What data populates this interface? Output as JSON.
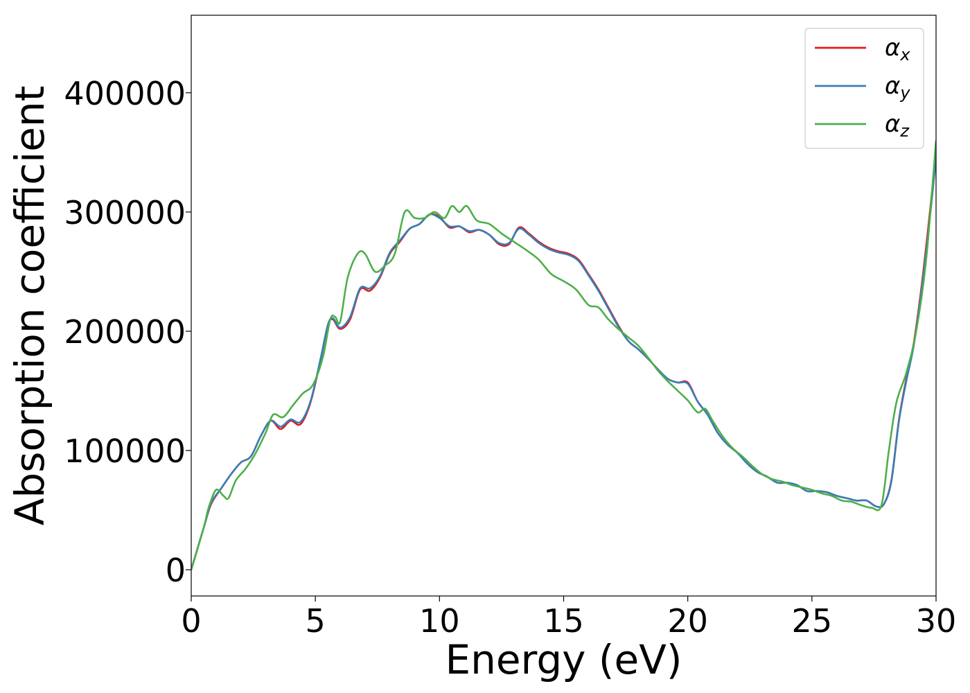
{
  "chart_data": {
    "type": "line",
    "title": "",
    "xlabel": "Energy (eV)",
    "ylabel": "Absorption coefficient",
    "xlim": [
      0,
      30
    ],
    "ylim": [
      -22000,
      465000
    ],
    "xticks": [
      0,
      5,
      10,
      15,
      20,
      25,
      30
    ],
    "xtick_labels": [
      "0",
      "5",
      "10",
      "15",
      "20",
      "25",
      "30"
    ],
    "yticks": [
      0,
      100000,
      200000,
      300000,
      400000
    ],
    "ytick_labels": [
      "0",
      "100000",
      "200000",
      "300000",
      "400000"
    ],
    "grid": false,
    "legend_position": "top-right",
    "series": [
      {
        "name": "α_x",
        "legend_base": "α",
        "legend_sub": "x",
        "color": "#e41a1c",
        "x": [
          0,
          0.5,
          0.8,
          1.2,
          1.6,
          2.0,
          2.4,
          2.8,
          3.2,
          3.6,
          4.0,
          4.4,
          4.8,
          5.2,
          5.5,
          5.7,
          6.0,
          6.4,
          6.8,
          7.2,
          7.6,
          8.0,
          8.4,
          8.8,
          9.2,
          9.6,
          10.0,
          10.4,
          10.8,
          11.2,
          11.6,
          12.0,
          12.4,
          12.8,
          13.2,
          13.6,
          14.0,
          14.4,
          14.8,
          15.2,
          15.6,
          16.0,
          16.4,
          16.8,
          17.2,
          17.6,
          18.0,
          18.4,
          18.8,
          19.2,
          19.6,
          20.0,
          20.4,
          20.8,
          21.2,
          21.6,
          22.0,
          22.4,
          22.8,
          23.2,
          23.6,
          24.0,
          24.4,
          24.8,
          25.2,
          25.6,
          26.0,
          26.4,
          26.8,
          27.2,
          27.6,
          27.9,
          28.2,
          28.5,
          28.8,
          29.1,
          29.4,
          29.7,
          30.0
        ],
        "values": [
          0,
          35000,
          55000,
          68000,
          80000,
          90000,
          95000,
          112000,
          125000,
          118000,
          125000,
          122000,
          140000,
          175000,
          205000,
          210000,
          202000,
          210000,
          235000,
          234000,
          245000,
          265000,
          275000,
          286000,
          290000,
          298000,
          296000,
          287000,
          288000,
          283000,
          285000,
          281000,
          273000,
          273000,
          287000,
          282000,
          275000,
          270000,
          267000,
          265000,
          260000,
          248000,
          235000,
          220000,
          205000,
          192000,
          185000,
          177000,
          168000,
          160000,
          157000,
          157000,
          141000,
          130000,
          115000,
          105000,
          98000,
          89000,
          82000,
          78000,
          73000,
          73000,
          71000,
          66000,
          66000,
          65000,
          62000,
          60000,
          58000,
          58000,
          53000,
          55000,
          75000,
          125000,
          160000,
          190000,
          235000,
          290000,
          350000
        ]
      },
      {
        "name": "α_y",
        "legend_base": "α",
        "legend_sub": "y",
        "color": "#377eb8",
        "x": [
          0,
          0.5,
          0.8,
          1.2,
          1.6,
          2.0,
          2.4,
          2.8,
          3.2,
          3.6,
          4.0,
          4.4,
          4.8,
          5.2,
          5.5,
          5.7,
          6.0,
          6.4,
          6.8,
          7.2,
          7.6,
          8.0,
          8.4,
          8.8,
          9.2,
          9.6,
          10.0,
          10.4,
          10.8,
          11.2,
          11.6,
          12.0,
          12.4,
          12.8,
          13.2,
          13.6,
          14.0,
          14.4,
          14.8,
          15.2,
          15.6,
          16.0,
          16.4,
          16.8,
          17.2,
          17.6,
          18.0,
          18.4,
          18.8,
          19.2,
          19.6,
          20.0,
          20.4,
          20.8,
          21.2,
          21.6,
          22.0,
          22.4,
          22.8,
          23.2,
          23.6,
          24.0,
          24.4,
          24.8,
          25.2,
          25.6,
          26.0,
          26.4,
          26.8,
          27.2,
          27.6,
          27.9,
          28.2,
          28.5,
          28.8,
          29.1,
          29.4,
          29.7,
          30.0
        ],
        "values": [
          0,
          35000,
          56000,
          68000,
          80000,
          90000,
          95000,
          112000,
          125000,
          120000,
          126000,
          124000,
          141000,
          176000,
          205000,
          211000,
          203000,
          212000,
          236000,
          236000,
          246000,
          266000,
          276000,
          286000,
          290000,
          298000,
          295000,
          288000,
          288000,
          284000,
          285000,
          281000,
          274000,
          274000,
          286000,
          281000,
          274000,
          269000,
          266000,
          264000,
          259000,
          247000,
          234000,
          219000,
          204000,
          192000,
          185000,
          177000,
          168000,
          160000,
          157000,
          156000,
          141000,
          130000,
          115000,
          105000,
          98000,
          89000,
          82000,
          78000,
          73000,
          73000,
          71000,
          66000,
          66000,
          65000,
          62000,
          60000,
          58000,
          58000,
          53000,
          55000,
          74000,
          124000,
          158000,
          188000,
          232000,
          285000,
          345000
        ]
      },
      {
        "name": "α_z",
        "legend_base": "α",
        "legend_sub": "z",
        "color": "#4daf4a",
        "x": [
          0,
          0.5,
          0.7,
          1.0,
          1.3,
          1.5,
          1.8,
          2.2,
          2.6,
          3.0,
          3.3,
          3.7,
          4.1,
          4.5,
          4.9,
          5.3,
          5.6,
          5.8,
          6.0,
          6.3,
          6.7,
          7.0,
          7.4,
          7.8,
          8.2,
          8.6,
          9.0,
          9.4,
          9.8,
          10.2,
          10.5,
          10.8,
          11.1,
          11.5,
          12.0,
          12.5,
          13.0,
          13.5,
          14.0,
          14.5,
          15.0,
          15.5,
          16.0,
          16.4,
          16.8,
          17.2,
          17.6,
          18.0,
          18.4,
          18.8,
          19.2,
          19.6,
          20.0,
          20.4,
          20.7,
          21.0,
          21.4,
          21.8,
          22.2,
          22.6,
          23.0,
          23.4,
          23.8,
          24.2,
          24.6,
          25.0,
          25.4,
          25.8,
          26.2,
          26.6,
          27.0,
          27.4,
          27.8,
          28.1,
          28.4,
          28.8,
          29.2,
          29.6,
          30.0
        ],
        "values": [
          0,
          35000,
          52000,
          67000,
          62000,
          60000,
          75000,
          85000,
          98000,
          115000,
          130000,
          128000,
          138000,
          148000,
          155000,
          178000,
          210000,
          212000,
          208000,
          245000,
          265000,
          265000,
          250000,
          255000,
          265000,
          300000,
          295000,
          295000,
          300000,
          295000,
          305000,
          300000,
          305000,
          293000,
          290000,
          282000,
          275000,
          268000,
          260000,
          248000,
          242000,
          235000,
          222000,
          220000,
          210000,
          202000,
          195000,
          188000,
          178000,
          167000,
          158000,
          150000,
          142000,
          132000,
          135000,
          125000,
          112000,
          102000,
          95000,
          87000,
          80000,
          76000,
          74000,
          71000,
          69000,
          67000,
          64000,
          62000,
          58000,
          57000,
          54000,
          52000,
          54000,
          100000,
          140000,
          165000,
          200000,
          260000,
          360000
        ]
      }
    ]
  }
}
